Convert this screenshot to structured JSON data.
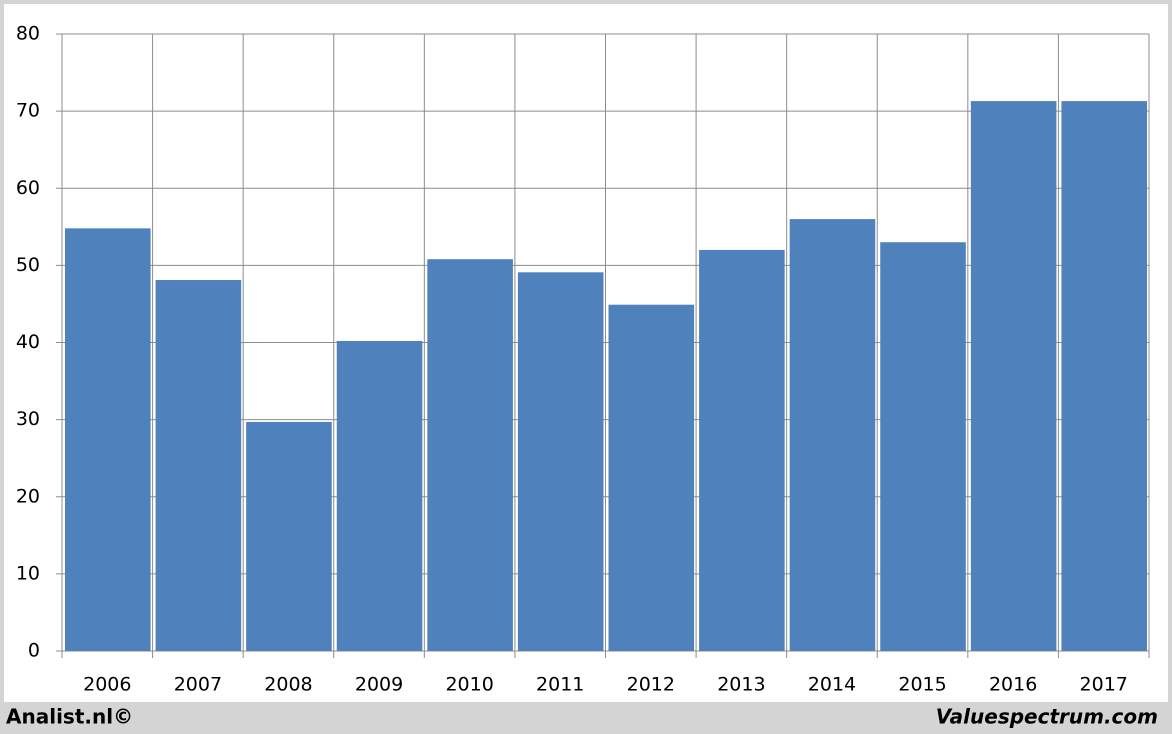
{
  "chart_data": {
    "type": "bar",
    "categories": [
      "2006",
      "2007",
      "2008",
      "2009",
      "2010",
      "2011",
      "2012",
      "2013",
      "2014",
      "2015",
      "2016",
      "2017"
    ],
    "values": [
      54.8,
      48.1,
      29.7,
      40.2,
      50.8,
      49.1,
      44.9,
      52.0,
      56.0,
      53.0,
      71.3,
      71.3
    ],
    "color": "#4f81bd",
    "ylim": [
      0,
      80
    ],
    "yticks": [
      0,
      10,
      20,
      30,
      40,
      50,
      60,
      70,
      80
    ],
    "grid": true,
    "credits": [
      "Analist.nl©",
      "Valuespectrum.com"
    ]
  }
}
